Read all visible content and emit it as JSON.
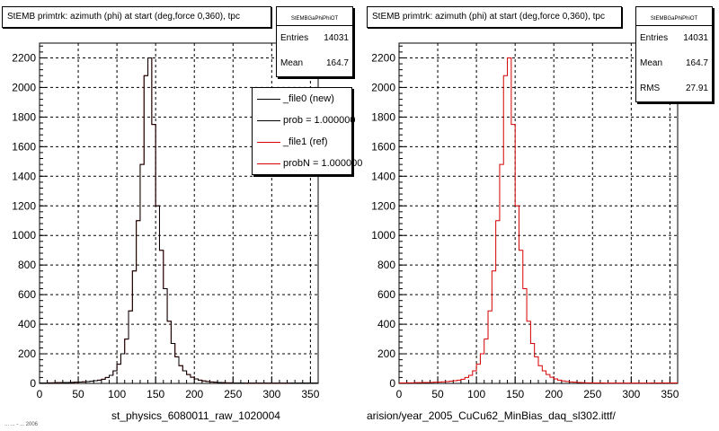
{
  "colors": {
    "new_histogram": "#000000",
    "ref_histogram": "#d40000",
    "frame": "#000000",
    "grid": "#000000"
  },
  "footer_text": "... ... - ... 2006",
  "chart_data": [
    {
      "type": "histogram",
      "title": "StEMB primtrk: azimuth (phi) at start (deg,force 0,360), tpc",
      "xlabel": "st_physics_6080011_raw_1020004",
      "ylabel": "",
      "xlim": [
        0,
        360
      ],
      "ylim": [
        0,
        2300
      ],
      "xticks": [
        "0",
        "50",
        "100",
        "150",
        "200",
        "250",
        "300",
        "350"
      ],
      "yticks": [
        "0",
        "200",
        "400",
        "600",
        "800",
        "1000",
        "1200",
        "1400",
        "1600",
        "1800",
        "2000",
        "2200"
      ],
      "grid": true,
      "bin_width": 5,
      "stats": {
        "name": "StEMBGaPhiPhiOT",
        "entries_label": "Entries",
        "entries": "14031",
        "mean_label": "Mean",
        "mean": "164.7"
      },
      "legend": {
        "placement": "top-right",
        "entries": [
          {
            "label": "_file0 (new)",
            "color": "#000000"
          },
          {
            "label": "prob = 1.000000",
            "color": "#000000"
          },
          {
            "label": "_file1 (ref)",
            "color": "#d40000"
          },
          {
            "label": "probN = 1.000000",
            "color": "#d40000"
          }
        ]
      },
      "series": [
        {
          "name": "_file0 (new)",
          "color": "#000000",
          "values": [
            3,
            3,
            4,
            4,
            5,
            5,
            6,
            6,
            7,
            8,
            9,
            11,
            12,
            15,
            18,
            22,
            28,
            40,
            55,
            85,
            130,
            200,
            300,
            490,
            760,
            1100,
            1480,
            2080,
            2200,
            1750,
            1200,
            900,
            640,
            420,
            270,
            180,
            120,
            85,
            60,
            42,
            30,
            22,
            17,
            13,
            10,
            8,
            6,
            5,
            4,
            4,
            3,
            3,
            3,
            2,
            2,
            2,
            2,
            2,
            2,
            2,
            2,
            2,
            2,
            2,
            2,
            3,
            3,
            3,
            3,
            3,
            3,
            3
          ]
        },
        {
          "name": "_file1 (ref)",
          "color": "#d40000",
          "values": [
            3,
            3,
            4,
            4,
            5,
            5,
            6,
            6,
            7,
            8,
            9,
            11,
            12,
            15,
            18,
            22,
            28,
            40,
            55,
            85,
            130,
            200,
            300,
            490,
            760,
            1100,
            1480,
            2080,
            2200,
            1750,
            1200,
            900,
            640,
            420,
            270,
            180,
            120,
            85,
            60,
            42,
            30,
            22,
            17,
            13,
            10,
            8,
            6,
            5,
            4,
            4,
            3,
            3,
            3,
            2,
            2,
            2,
            2,
            2,
            2,
            2,
            2,
            2,
            2,
            2,
            2,
            3,
            3,
            3,
            3,
            3,
            3,
            3
          ]
        }
      ]
    },
    {
      "type": "histogram",
      "title": "StEMB primtrk: azimuth (phi) at start (deg,force 0,360), tpc",
      "xlabel": "arision/year_2005_CuCu62_MinBias_daq_sl302.ittf/",
      "ylabel": "",
      "xlim": [
        0,
        360
      ],
      "ylim": [
        0,
        2300
      ],
      "xticks": [
        "0",
        "50",
        "100",
        "150",
        "200",
        "250",
        "300",
        "350"
      ],
      "yticks": [
        "0",
        "200",
        "400",
        "600",
        "800",
        "1000",
        "1200",
        "1400",
        "1600",
        "1800",
        "2000",
        "2200"
      ],
      "grid": true,
      "bin_width": 5,
      "stats": {
        "name": "StEMBGaPhiPhiOT",
        "entries_label": "Entries",
        "entries": "14031",
        "mean_label": "Mean",
        "mean": "164.7",
        "rms_label": "RMS",
        "rms": "27.91"
      },
      "series": [
        {
          "name": "",
          "color": "#d40000",
          "values": [
            3,
            3,
            4,
            4,
            5,
            5,
            6,
            6,
            7,
            8,
            9,
            11,
            12,
            15,
            18,
            22,
            28,
            40,
            55,
            85,
            130,
            200,
            300,
            490,
            760,
            1100,
            1480,
            2080,
            2200,
            1750,
            1200,
            900,
            640,
            420,
            270,
            180,
            120,
            85,
            60,
            42,
            30,
            22,
            17,
            13,
            10,
            8,
            6,
            5,
            4,
            4,
            3,
            3,
            3,
            2,
            2,
            2,
            2,
            2,
            2,
            2,
            2,
            2,
            2,
            2,
            2,
            3,
            3,
            3,
            3,
            3,
            3,
            3
          ]
        }
      ]
    }
  ]
}
